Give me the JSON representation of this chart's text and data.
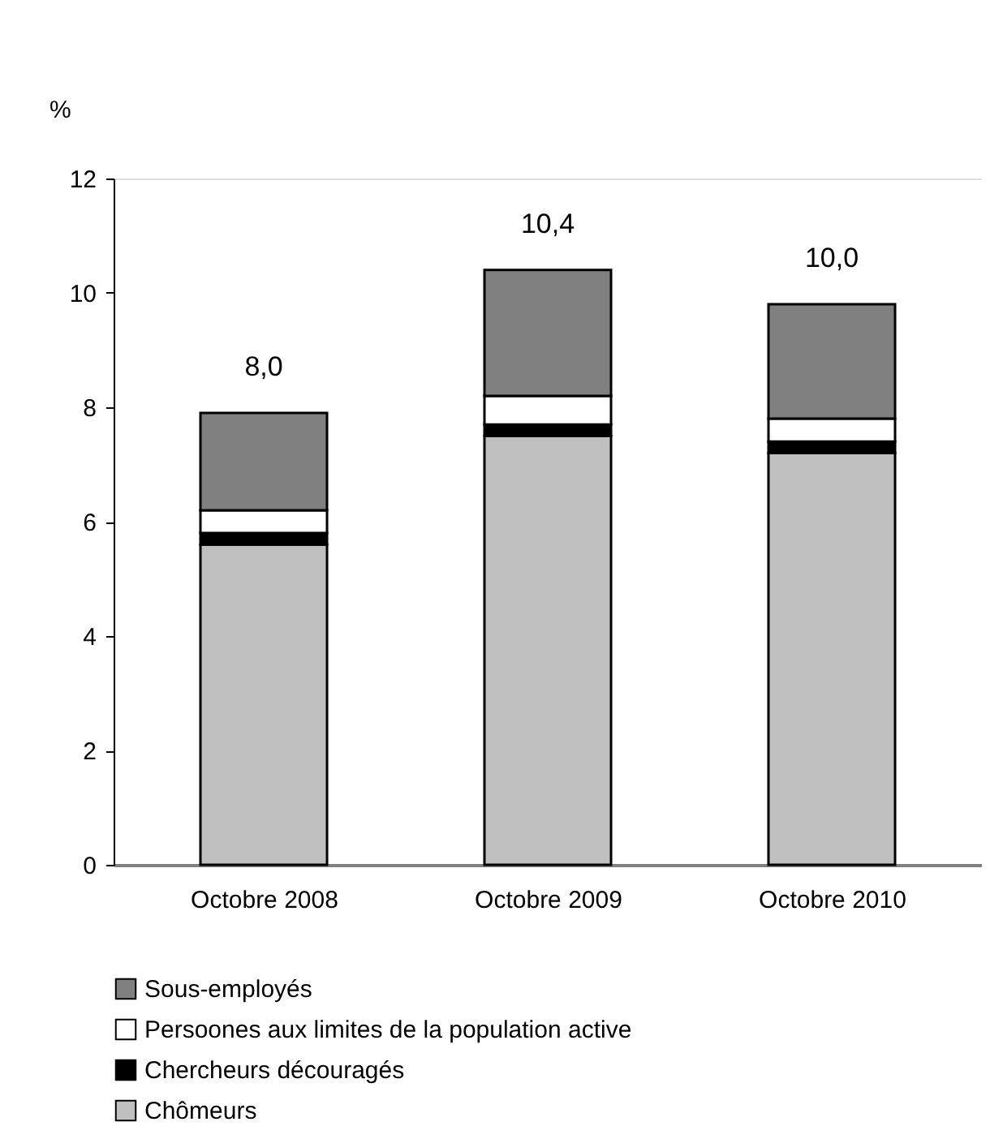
{
  "chart_data": {
    "type": "bar",
    "ylabel": "%",
    "categories": [
      "Octobre 2008",
      "Octobre 2009",
      "Octobre 2010"
    ],
    "stacked": true,
    "series": [
      {
        "name": "Chômeurs",
        "color": "#c0c0c0",
        "values": [
          5.6,
          7.5,
          7.2
        ]
      },
      {
        "name": "Chercheurs découragés",
        "color": "#000000",
        "values": [
          0.2,
          0.2,
          0.2
        ]
      },
      {
        "name": "Persoones aux limites de la population active",
        "color": "#ffffff",
        "values": [
          0.4,
          0.5,
          0.4
        ]
      },
      {
        "name": "Sous-employés",
        "color": "#808080",
        "values": [
          1.7,
          2.2,
          2.0
        ]
      }
    ],
    "totals": [
      "8,0",
      "10,4",
      "10,0"
    ],
    "ylim": [
      0,
      12
    ],
    "yticks": [
      0,
      2,
      4,
      6,
      8,
      10,
      12
    ],
    "grid": false,
    "legend": "bottom"
  }
}
